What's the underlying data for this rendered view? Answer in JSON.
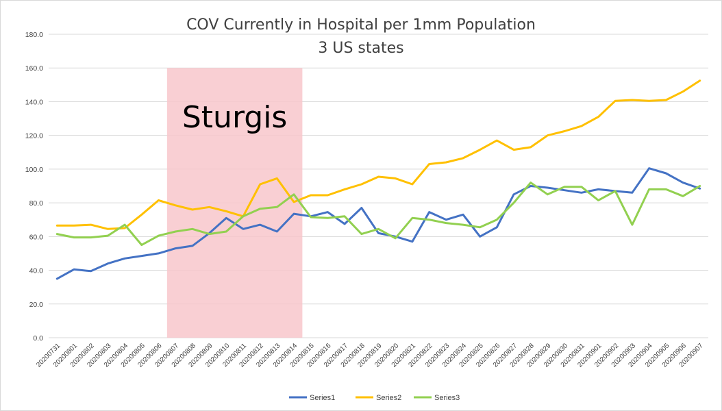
{
  "chart_data": {
    "type": "line",
    "title": "COV Currently in Hospital per 1mm Population",
    "subtitle": "3 US states",
    "xlabel": "",
    "ylabel": "",
    "ylim": [
      0,
      180
    ],
    "yticks": [
      "0.0",
      "20.0",
      "40.0",
      "60.0",
      "80.0",
      "100.0",
      "120.0",
      "140.0",
      "160.0",
      "180.0"
    ],
    "grid": true,
    "legend_position": "bottom",
    "categories": [
      "20200731",
      "20200801",
      "20200802",
      "20200803",
      "20200804",
      "20200805",
      "20200806",
      "20200807",
      "20200808",
      "20200809",
      "20200810",
      "20200811",
      "20200812",
      "20200813",
      "20200814",
      "20200815",
      "20200816",
      "20200817",
      "20200818",
      "20200819",
      "20200820",
      "20200821",
      "20200822",
      "20200823",
      "20200824",
      "20200825",
      "20200826",
      "20200827",
      "20200828",
      "20200829",
      "20200830",
      "20200831",
      "20200901",
      "20200902",
      "20200903",
      "20200904",
      "20200905",
      "20200906",
      "20200907"
    ],
    "series": [
      {
        "name": "Series1",
        "color": "#4472C4",
        "values": [
          35.0,
          40.5,
          39.5,
          44.0,
          47.0,
          48.5,
          50.0,
          53.0,
          54.5,
          62.0,
          71.0,
          64.5,
          67.0,
          63.0,
          73.5,
          72.0,
          74.5,
          67.5,
          77.0,
          62.0,
          60.0,
          57.0,
          74.5,
          70.0,
          73.0,
          60.0,
          65.5,
          85.0,
          90.0,
          89.0,
          87.5,
          86.0,
          88.0,
          87.0,
          86.0,
          100.5,
          97.5,
          92.0,
          88.5
        ]
      },
      {
        "name": "Series2",
        "color": "#FFC000",
        "values": [
          66.5,
          66.5,
          67.0,
          64.5,
          65.0,
          73.0,
          81.5,
          78.5,
          76.0,
          77.5,
          75.0,
          72.0,
          91.0,
          94.5,
          80.5,
          84.5,
          84.5,
          88.0,
          91.0,
          95.5,
          94.5,
          91.0,
          103.0,
          104.0,
          106.5,
          111.5,
          117.0,
          111.5,
          113.0,
          120.0,
          122.5,
          125.5,
          131.0,
          140.5,
          141.0,
          140.5,
          141.0,
          146.0,
          152.5
        ]
      },
      {
        "name": "Series3",
        "color": "#92D050",
        "values": [
          61.5,
          59.5,
          59.5,
          60.5,
          67.0,
          55.0,
          60.5,
          63.0,
          64.5,
          61.5,
          63.0,
          72.0,
          76.5,
          77.5,
          85.0,
          71.5,
          71.0,
          72.0,
          61.5,
          64.5,
          59.0,
          71.0,
          70.0,
          68.0,
          67.0,
          65.5,
          70.0,
          80.0,
          92.0,
          85.0,
          89.5,
          89.5,
          81.5,
          87.0,
          67.0,
          88.0,
          88.0,
          84.0,
          90.0
        ]
      }
    ],
    "annotations": [
      {
        "label": "Sturgis",
        "x_start": "20200807",
        "x_end": "20200814",
        "y_range": [
          0,
          160
        ],
        "color": "#F8C7CB"
      }
    ]
  }
}
